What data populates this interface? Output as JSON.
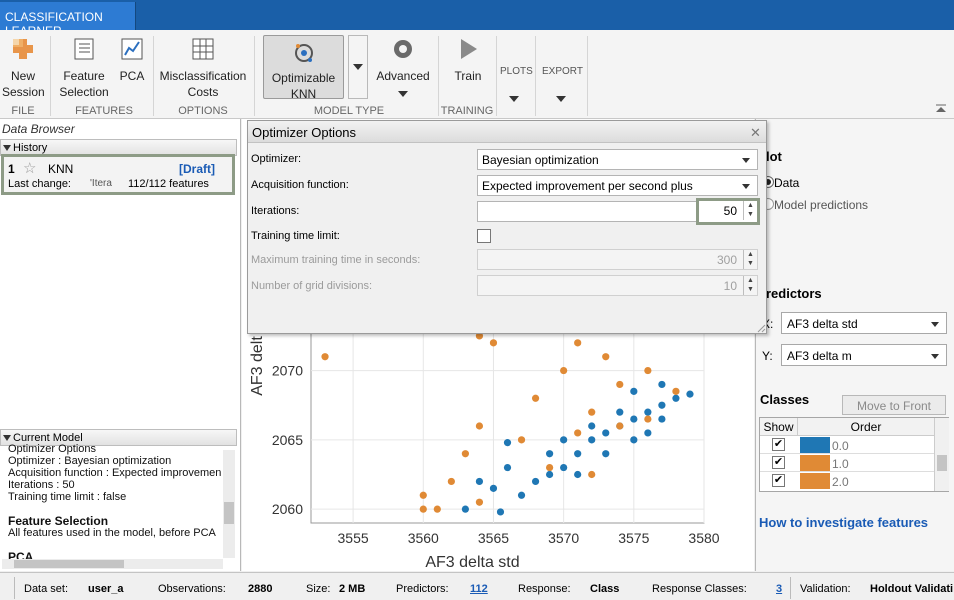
{
  "app_tab": "CLASSIFICATION LEARNER",
  "ribbon": {
    "new_session": "New Session",
    "file": "FILE",
    "feature_selection": "Feature Selection",
    "pca": "PCA",
    "features": "FEATURES",
    "misclass_costs": "Misclassification Costs",
    "options": "OPTIONS",
    "optimizable_knn": "Optimizable KNN",
    "model_type": "MODEL TYPE",
    "advanced": "Advanced",
    "train": "Train",
    "training": "TRAINING",
    "plots": "PLOTS",
    "export": "EXPORT"
  },
  "data_browser": {
    "title": "Data Browser",
    "history_label": "History",
    "item_number": "1",
    "item_name": "KNN",
    "item_status": "[Draft]",
    "last_change_label": "Last change:",
    "last_change_value": "'Itera",
    "features_count": "112/112 features",
    "current_model_label": "Current Model",
    "model_lines": [
      "Optimizer Options",
      "Optimizer : Bayesian optimization",
      "Acquisition function : Expected improvemen",
      "Iterations : 50",
      "Training time limit : false",
      "",
      "Feature Selection",
      "All features used in the model, before PCA",
      "",
      "PCA"
    ]
  },
  "dialog": {
    "title": "Optimizer Options",
    "optimizer_label": "Optimizer:",
    "optimizer_value": "Bayesian optimization",
    "acq_label": "Acquisition function:",
    "acq_value": "Expected improvement per second plus",
    "iter_label": "Iterations:",
    "iter_value": "50",
    "time_limit_label": "Training time limit:",
    "max_time_label": "Maximum training time in seconds:",
    "max_time_value": "300",
    "grid_label": "Number of grid divisions:",
    "grid_value": "10"
  },
  "right_panel": {
    "plot_title": "lot",
    "radio_data": "Data",
    "radio_pred": "Model predictions",
    "predictors_title": "redictors",
    "x_label": "X:",
    "x_value": "AF3 delta std",
    "y_label": "Y:",
    "y_value": "AF3 delta m",
    "classes_title": "Classes",
    "move_front": "Move to Front",
    "col_show": "Show",
    "col_order": "Order",
    "classes": [
      {
        "name": "0.0",
        "color": "#1f77b4"
      },
      {
        "name": "1.0",
        "color": "#e08a35"
      },
      {
        "name": "2.0",
        "color": "#e08a35"
      }
    ],
    "how_to": "How to investigate features"
  },
  "status": {
    "dataset_label": "Data set:",
    "dataset": "user_a",
    "obs_label": "Observations:",
    "obs": "2880",
    "size_label": "Size:",
    "size": "2 MB",
    "pred_label": "Predictors:",
    "pred": "112",
    "resp_label": "Response:",
    "resp": "Class",
    "rclass_label": "Response Classes:",
    "rclass": "3",
    "val_label": "Validation:",
    "val": "Holdout Validati"
  },
  "chart_data": {
    "type": "scatter",
    "xlabel": "AF3 delta std",
    "ylabel": "AF3 delt",
    "xlim": [
      3552,
      3580
    ],
    "ylim": [
      2059,
      2073
    ],
    "x_ticks": [
      "3555",
      "3560",
      "3565",
      "3570",
      "3575",
      "3580"
    ],
    "y_ticks": [
      "2060",
      "2065",
      "2070"
    ],
    "series": [
      {
        "name": "0.0",
        "color": "#1f77b4",
        "points": [
          [
            3570,
            2063
          ],
          [
            3571,
            2064
          ],
          [
            3572,
            2065
          ],
          [
            3573,
            2065.5
          ],
          [
            3574,
            2066
          ],
          [
            3575,
            2066.5
          ],
          [
            3576,
            2067
          ],
          [
            3577,
            2067.5
          ],
          [
            3578,
            2068
          ],
          [
            3579,
            2068.3
          ],
          [
            3569,
            2062.5
          ],
          [
            3568,
            2062
          ],
          [
            3566,
            2063
          ],
          [
            3567,
            2061
          ],
          [
            3565,
            2061.5
          ],
          [
            3564,
            2062
          ],
          [
            3570,
            2065
          ],
          [
            3572,
            2066
          ],
          [
            3574,
            2067
          ],
          [
            3576,
            2065.5
          ],
          [
            3571,
            2062.5
          ],
          [
            3573,
            2064
          ],
          [
            3575,
            2065
          ],
          [
            3577,
            2066.5
          ],
          [
            3569,
            2064
          ],
          [
            3566,
            2064.8
          ],
          [
            3563,
            2060
          ],
          [
            3565.5,
            2059.8
          ],
          [
            3575,
            2068.5
          ],
          [
            3577,
            2069
          ]
        ]
      },
      {
        "name": "1.0",
        "color": "#e08a35",
        "points": [
          [
            3553,
            2071
          ],
          [
            3555,
            2073
          ],
          [
            3560,
            2061
          ],
          [
            3561,
            2060
          ],
          [
            3562,
            2062
          ],
          [
            3563,
            2064
          ],
          [
            3564,
            2066
          ],
          [
            3565,
            2072
          ],
          [
            3566,
            2073
          ],
          [
            3564,
            2072.5
          ],
          [
            3568,
            2068
          ],
          [
            3570,
            2070
          ],
          [
            3571,
            2072
          ],
          [
            3573,
            2071
          ],
          [
            3574,
            2069
          ],
          [
            3576,
            2070
          ],
          [
            3578,
            2068.5
          ],
          [
            3572,
            2067
          ],
          [
            3567,
            2065
          ],
          [
            3569,
            2063
          ],
          [
            3571,
            2065.5
          ],
          [
            3574,
            2066
          ],
          [
            3576,
            2066.5
          ],
          [
            3564,
            2060.5
          ],
          [
            3560,
            2060
          ],
          [
            3572,
            2062.5
          ]
        ]
      }
    ]
  }
}
